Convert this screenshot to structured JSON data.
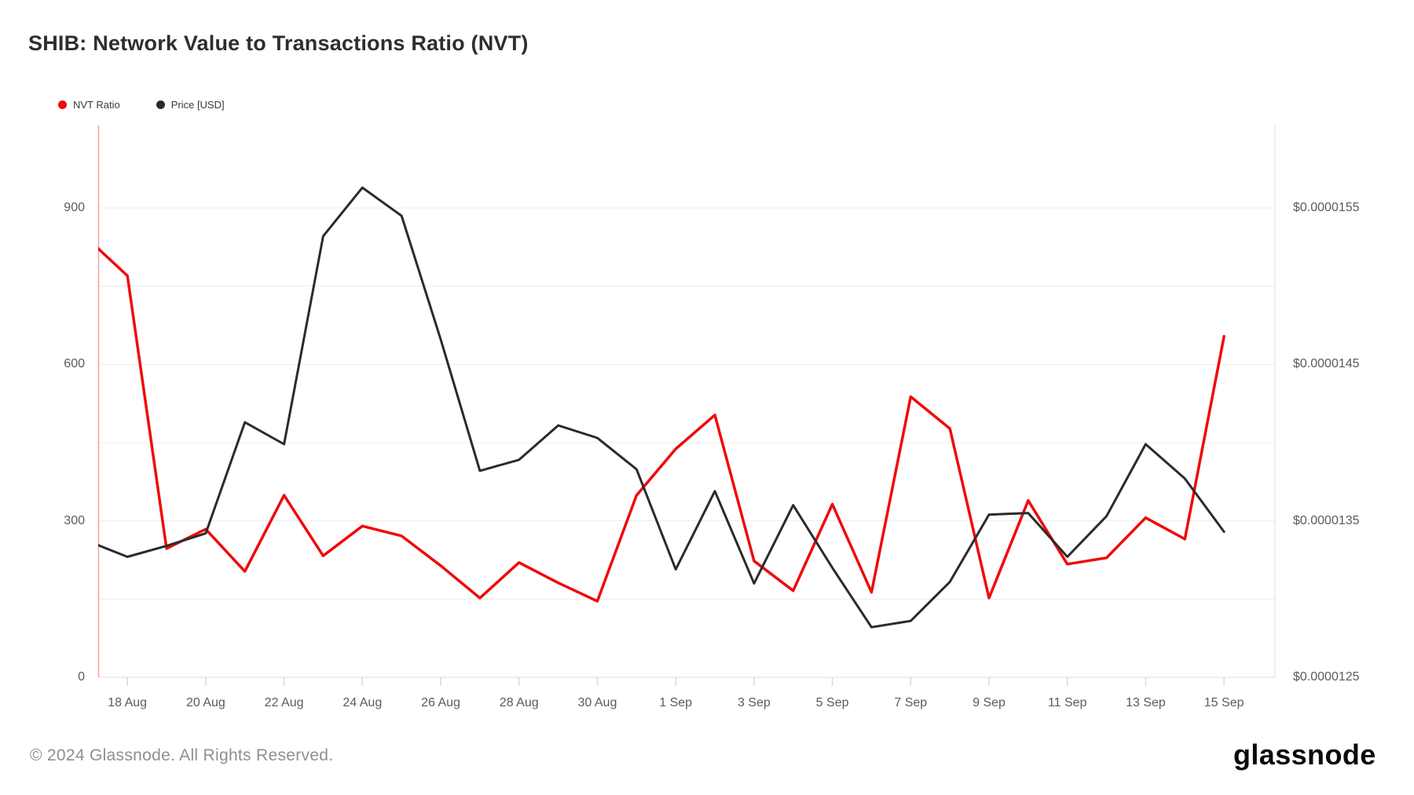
{
  "header": {
    "title": "SHIB: Network Value to Transactions Ratio (NVT)"
  },
  "legend": {
    "items": [
      {
        "label": "NVT Ratio",
        "color": "#f00a0a"
      },
      {
        "label": "Price [USD]",
        "color": "#2b2b2b"
      }
    ]
  },
  "chart_data": {
    "type": "line",
    "title": "SHIB: Network Value to Transactions Ratio (NVT)",
    "x": [
      "17 Aug",
      "18 Aug",
      "19 Aug",
      "20 Aug",
      "21 Aug",
      "22 Aug",
      "23 Aug",
      "24 Aug",
      "25 Aug",
      "26 Aug",
      "27 Aug",
      "28 Aug",
      "29 Aug",
      "30 Aug",
      "31 Aug",
      "1 Sep",
      "2 Sep",
      "3 Sep",
      "4 Sep",
      "5 Sep",
      "6 Sep",
      "7 Sep",
      "8 Sep",
      "9 Sep",
      "10 Sep",
      "11 Sep",
      "12 Sep",
      "13 Sep",
      "14 Sep",
      "15 Sep"
    ],
    "series": [
      {
        "name": "NVT Ratio",
        "axis": "left",
        "color": "#f00a0a",
        "values": [
          840,
          770,
          247,
          284,
          203,
          349,
          233,
          290,
          271,
          214,
          152,
          220,
          181,
          146,
          349,
          438,
          503,
          223,
          166,
          332,
          163,
          538,
          477,
          152,
          339,
          217,
          229,
          306,
          265,
          654
        ]
      },
      {
        "name": "Price [USD]",
        "axis": "right",
        "color": "#2b2b2b",
        "values": [
          1.337e-05,
          1.327e-05,
          1.334e-05,
          1.342e-05,
          1.413e-05,
          1.399e-05,
          1.532e-05,
          1.563e-05,
          1.545e-05,
          1.466e-05,
          1.382e-05,
          1.389e-05,
          1.411e-05,
          1.403e-05,
          1.383e-05,
          1.319e-05,
          1.369e-05,
          1.31e-05,
          1.36e-05,
          1.32e-05,
          1.282e-05,
          1.286e-05,
          1.311e-05,
          1.354e-05,
          1.355e-05,
          1.327e-05,
          1.353e-05,
          1.399e-05,
          1.377e-05,
          1.343e-05
        ]
      }
    ],
    "left_axis": {
      "tick_labels": [
        "0",
        "300",
        "600",
        "900"
      ],
      "tick_values": [
        0,
        300,
        600,
        900
      ],
      "min": 0,
      "max": 1058,
      "grid_step": 150
    },
    "right_axis": {
      "tick_labels": [
        "$0.0000125",
        "$0.0000135",
        "$0.0000145",
        "$0.0000155"
      ],
      "tick_values": [
        1.25e-05,
        1.35e-05,
        1.45e-05,
        1.55e-05
      ],
      "min": 1.25e-05,
      "max": 1.6e-05
    },
    "x_axis": {
      "tick_labels": [
        "18 Aug",
        "20 Aug",
        "22 Aug",
        "24 Aug",
        "26 Aug",
        "28 Aug",
        "30 Aug",
        "1 Sep",
        "3 Sep",
        "5 Sep",
        "7 Sep",
        "9 Sep",
        "11 Sep",
        "13 Sep",
        "15 Sep"
      ],
      "tick_indices": [
        1,
        3,
        5,
        7,
        9,
        11,
        13,
        15,
        17,
        19,
        21,
        23,
        25,
        27,
        29
      ]
    },
    "grid": true,
    "legend_position": "top-left",
    "colors": {
      "grid": "#ececec",
      "axis_border": "#e2e2e2",
      "tick": "#d9d9d9",
      "start_marker": "#ff9f9f"
    }
  },
  "footer": {
    "copyright": "© 2024 Glassnode. All Rights Reserved.",
    "brand": "glassnode"
  }
}
